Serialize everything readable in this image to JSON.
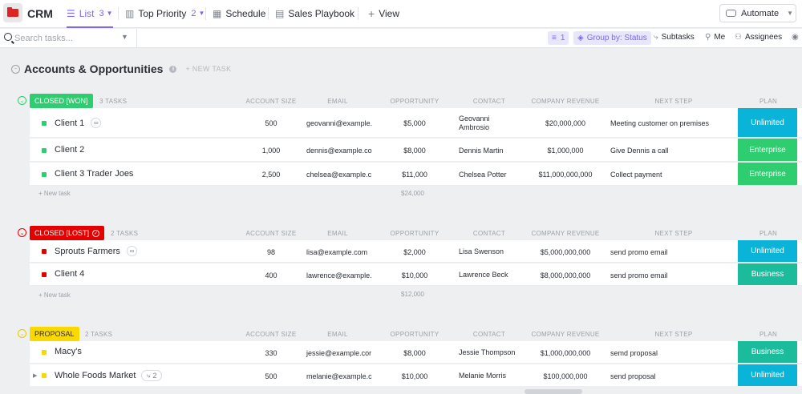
{
  "app": {
    "title": "CRM",
    "icon": "folder-icon"
  },
  "tabs": [
    {
      "label": "List",
      "count": "3",
      "icon": "list-icon",
      "active": true
    },
    {
      "label": "Top Priority",
      "count": "2",
      "icon": "board-icon"
    },
    {
      "label": "Schedule",
      "icon": "calendar-icon"
    },
    {
      "label": "Sales Playbook",
      "icon": "doc-icon"
    },
    {
      "label": "View",
      "icon": "plus-icon"
    }
  ],
  "automate": {
    "label": "Automate"
  },
  "toolbar": {
    "search_placeholder": "Search tasks...",
    "filter_count": "1",
    "group_by": "Group by: Status",
    "subtasks": "Subtasks",
    "me": "Me",
    "assignees": "Assignees"
  },
  "list": {
    "title": "Accounts & Opportunities",
    "new_task": "+ NEW TASK"
  },
  "columns": [
    "ACCOUNT SIZE",
    "EMAIL",
    "OPPORTUNITY",
    "CONTACT",
    "COMPANY REVENUE",
    "NEXT STEP",
    "PLAN"
  ],
  "groups": [
    {
      "status": "CLOSED [WON]",
      "count": "3 TASKS",
      "color": "#2ecd6f",
      "add_label": "+ New task",
      "sum": "$24,000",
      "tasks": [
        {
          "name": "Client 1",
          "size": "500",
          "email": "geovanni@example.",
          "opportunity": "$5,000",
          "contact": "Geovanni Ambrosio",
          "revenue": "$20,000,000",
          "next": "Meeting customer on premises",
          "plan": "Unlimited"
        },
        {
          "name": "Client 2",
          "size": "1,000",
          "email": "dennis@example.co",
          "opportunity": "$8,000",
          "contact": "Dennis Martin",
          "revenue": "$1,000,000",
          "next": "Give Dennis a call",
          "plan": "Enterprise"
        },
        {
          "name": "Client 3 Trader Joes",
          "size": "2,500",
          "email": "chelsea@example.c",
          "opportunity": "$11,000",
          "contact": "Chelsea Potter",
          "revenue": "$11,000,000,000",
          "next": "Collect payment",
          "plan": "Enterprise"
        }
      ]
    },
    {
      "status": "CLOSED [LOST]",
      "count": "2 TASKS",
      "color": "#e50000",
      "add_label": "+ New task",
      "sum": "$12,000",
      "tasks": [
        {
          "name": "Sprouts Farmers",
          "size": "98",
          "email": "lisa@example.com",
          "opportunity": "$2,000",
          "contact": "Lisa Swenson",
          "revenue": "$5,000,000,000",
          "next": "send promo email",
          "plan": "Unlimited"
        },
        {
          "name": "Client 4",
          "size": "400",
          "email": "lawrence@example.",
          "opportunity": "$10,000",
          "contact": "Lawrence Beck",
          "revenue": "$8,000,000,000",
          "next": "send promo email",
          "plan": "Business"
        }
      ]
    },
    {
      "status": "PROPOSAL",
      "count": "2 TASKS",
      "color": "#f9d900",
      "tasks": [
        {
          "name": "Macy's",
          "size": "330",
          "email": "jessie@example.cor",
          "opportunity": "$8,000",
          "contact": "Jessie Thompson",
          "revenue": "$1,000,000,000",
          "next": "semd proposal",
          "plan": "Business"
        },
        {
          "name": "Whole Foods Market",
          "subtasks": "2",
          "size": "500",
          "email": "melanie@example.c",
          "opportunity": "$10,000",
          "contact": "Melanie Morris",
          "revenue": "$100,000,000",
          "next": "send proposal",
          "plan": "Unlimited"
        }
      ]
    }
  ],
  "plan_colors": {
    "Unlimited": "#0ab4d8",
    "Enterprise": "#2ecd6f",
    "Business": "#1bbc9c"
  }
}
